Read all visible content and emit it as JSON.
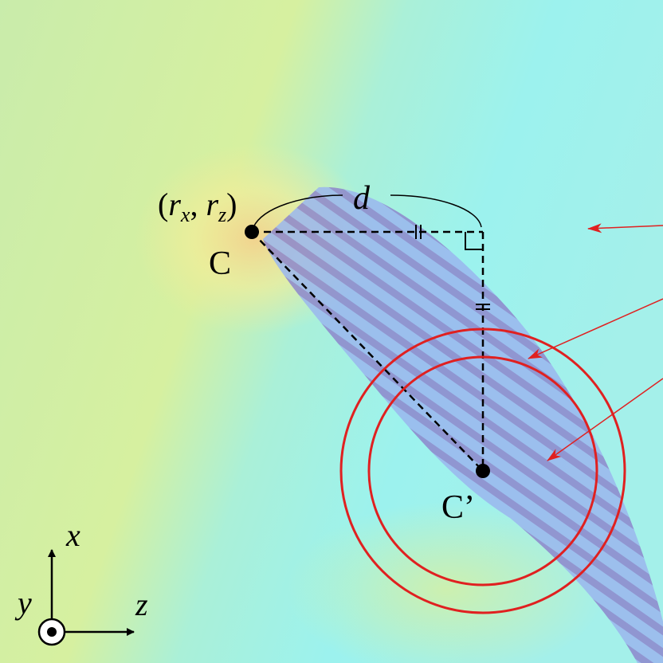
{
  "labels": {
    "coord": [
      "(",
      "r",
      "x",
      ", ",
      "r",
      "z",
      ")"
    ],
    "distance": "d",
    "center": "C",
    "center_moved": "C’",
    "axis_x": "x",
    "axis_y": "y",
    "axis_z": "z"
  }
}
